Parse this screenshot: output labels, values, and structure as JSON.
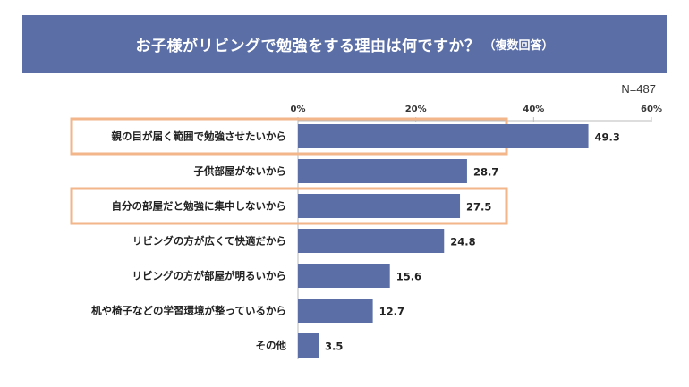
{
  "title": "お子様がリビングで勉強をする理由は何ですか？",
  "title_suffix": "（複数回答）",
  "n_label": "N=487",
  "colors": {
    "bar": "#5b6fa6",
    "title_bg": "#5b6fa6",
    "highlight": "#f2b68a"
  },
  "highlighted_categories": [
    "親の目が届く範囲で勉強させたいから",
    "自分の部屋だと勉強に集中しないから"
  ],
  "chart_data": {
    "type": "bar",
    "orientation": "horizontal",
    "categories": [
      "親の目が届く範囲で勉強させたいから",
      "子供部屋がないから",
      "自分の部屋だと勉強に集中しないから",
      "リビングの方が広くて快適だから",
      "リビングの方が部屋が明るいから",
      "机や椅子などの学習環境が整っているから",
      "その他"
    ],
    "values": [
      49.3,
      28.7,
      27.5,
      24.8,
      15.6,
      12.7,
      3.5
    ],
    "value_labels": [
      "49.3",
      "28.7",
      "27.5",
      "24.8",
      "15.6",
      "12.7",
      "3.5"
    ],
    "xlim": [
      0,
      60
    ],
    "ticks": [
      0,
      20,
      40,
      60
    ],
    "tick_labels": [
      "0%",
      "20%",
      "40%",
      "60%"
    ],
    "grid": false
  }
}
